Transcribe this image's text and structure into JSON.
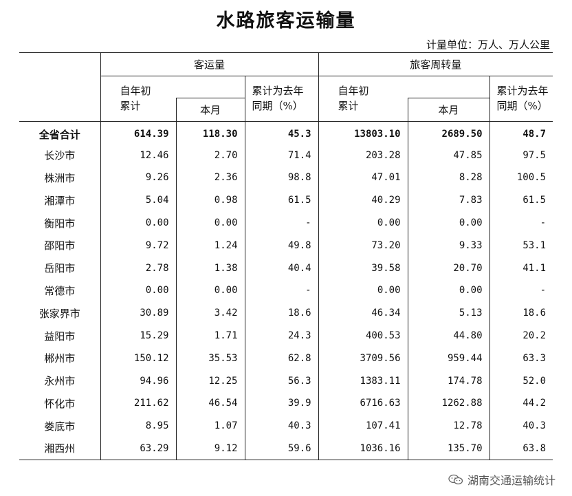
{
  "title": "水路旅客运输量",
  "unit": "计量单位：万人、万人公里",
  "header": {
    "group1": "客运量",
    "group2": "旅客周转量",
    "ytd": "自年初\n累计",
    "month": "本月",
    "yoy": "累计为去年\n同期（%）"
  },
  "rows": [
    {
      "name": "全省合计",
      "v": [
        "614.39",
        "118.30",
        "45.3",
        "13803.10",
        "2689.50",
        "48.7"
      ],
      "bold": true
    },
    {
      "name": "长沙市",
      "v": [
        "12.46",
        "2.70",
        "71.4",
        "203.28",
        "47.85",
        "97.5"
      ]
    },
    {
      "name": "株洲市",
      "v": [
        "9.26",
        "2.36",
        "98.8",
        "47.01",
        "8.28",
        "100.5"
      ]
    },
    {
      "name": "湘潭市",
      "v": [
        "5.04",
        "0.98",
        "61.5",
        "40.29",
        "7.83",
        "61.5"
      ]
    },
    {
      "name": "衡阳市",
      "v": [
        "0.00",
        "0.00",
        "-",
        "0.00",
        "0.00",
        "-"
      ]
    },
    {
      "name": "邵阳市",
      "v": [
        "9.72",
        "1.24",
        "49.8",
        "73.20",
        "9.33",
        "53.1"
      ]
    },
    {
      "name": "岳阳市",
      "v": [
        "2.78",
        "1.38",
        "40.4",
        "39.58",
        "20.70",
        "41.1"
      ]
    },
    {
      "name": "常德市",
      "v": [
        "0.00",
        "0.00",
        "-",
        "0.00",
        "0.00",
        "-"
      ]
    },
    {
      "name": "张家界市",
      "v": [
        "30.89",
        "3.42",
        "18.6",
        "46.34",
        "5.13",
        "18.6"
      ]
    },
    {
      "name": "益阳市",
      "v": [
        "15.29",
        "1.71",
        "24.3",
        "400.53",
        "44.80",
        "20.2"
      ]
    },
    {
      "name": "郴州市",
      "v": [
        "150.12",
        "35.53",
        "62.8",
        "3709.56",
        "959.44",
        "63.3"
      ]
    },
    {
      "name": "永州市",
      "v": [
        "94.96",
        "12.25",
        "56.3",
        "1383.11",
        "174.78",
        "52.0"
      ]
    },
    {
      "name": "怀化市",
      "v": [
        "211.62",
        "46.54",
        "39.9",
        "6716.63",
        "1262.88",
        "44.2"
      ]
    },
    {
      "name": "娄底市",
      "v": [
        "8.95",
        "1.07",
        "40.3",
        "107.41",
        "12.78",
        "40.3"
      ]
    },
    {
      "name": "湘西州",
      "v": [
        "63.29",
        "9.12",
        "59.6",
        "1036.16",
        "135.70",
        "63.8"
      ]
    }
  ],
  "watermark": "湖南交通运输统计",
  "icons": {
    "watermark": "wechat-icon"
  }
}
